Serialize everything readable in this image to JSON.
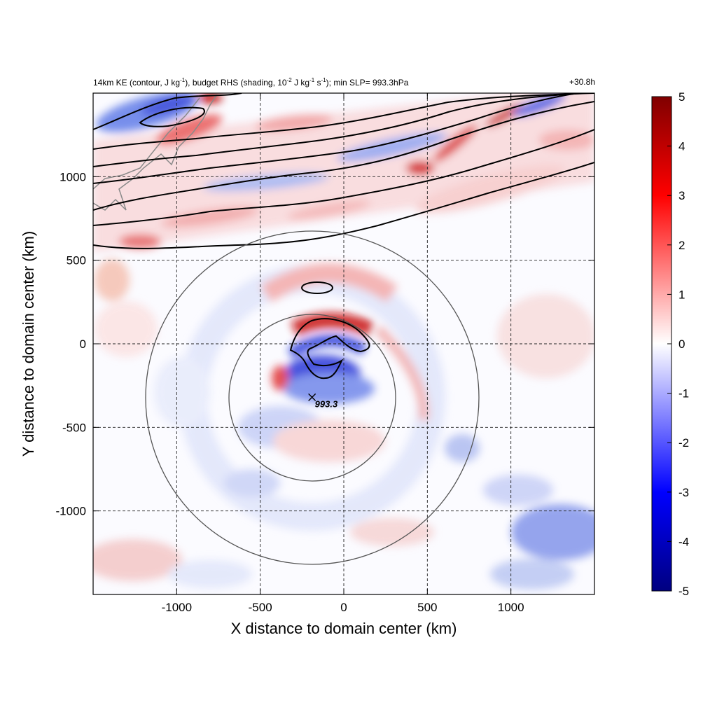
{
  "chart_data": {
    "type": "heatmap",
    "title": {
      "prefix": "14km KE (contour, J kg",
      "kg_exp": "-1",
      "mid": "), budget RHS (shading, 10",
      "scale_exp": "-2",
      "mid2": " J kg",
      "kg_exp2": "-1",
      "s_unit": " s",
      "s_exp": "-1",
      "suffix": "); min SLP= 993.3hPa"
    },
    "time_label": "+30.8h",
    "xlabel": "X distance to domain center (km)",
    "ylabel": "Y distance to domain center (km)",
    "xlim": [
      -1500,
      1500
    ],
    "ylim": [
      -1500,
      1500
    ],
    "x_ticks": [
      "-1000",
      "-500",
      "0",
      "500",
      "1000"
    ],
    "x_tick_values": [
      -1000,
      -500,
      0,
      500,
      1000
    ],
    "y_ticks": [
      "-1000",
      "-500",
      "0",
      "500",
      "1000"
    ],
    "y_tick_values": [
      -1000,
      -500,
      0,
      500,
      1000
    ],
    "grid": "dashed",
    "colorbar": {
      "range": [
        -5,
        5
      ],
      "ticks": [
        "5",
        "4",
        "3",
        "2",
        "1",
        "0",
        "-1",
        "-2",
        "-3",
        "-4",
        "-5"
      ],
      "tick_values": [
        5,
        4,
        3,
        2,
        1,
        0,
        -1,
        -2,
        -3,
        -4,
        -5
      ],
      "colormap": [
        "#000080",
        "#0000ff",
        "#ffffff",
        "#ff0000",
        "#800000"
      ]
    },
    "min_slp": {
      "label": "993.3",
      "x": -190,
      "y": -320
    },
    "range_rings": {
      "center": [
        -190,
        -320
      ],
      "radii_km": [
        500,
        1000
      ]
    },
    "colors": {
      "positive": "#e01010",
      "negative": "#1030e0",
      "contour": "#000000",
      "coast": "#808080"
    }
  }
}
